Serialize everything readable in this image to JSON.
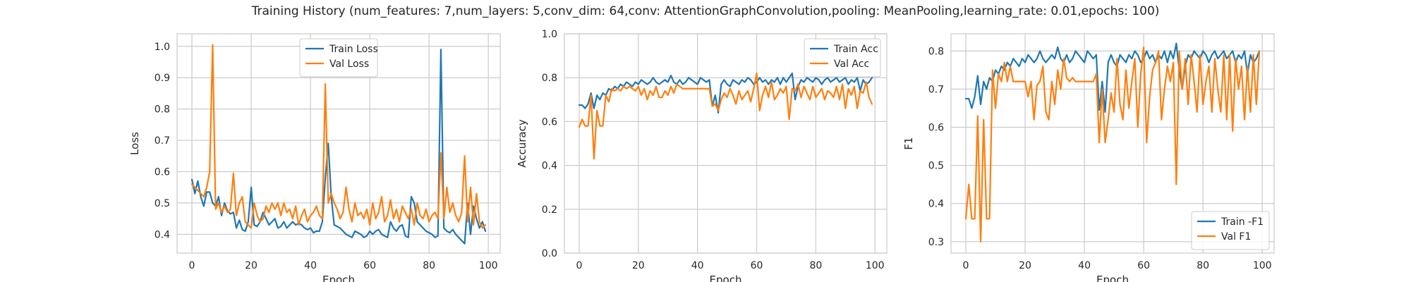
{
  "figure_title": "Training History (num_features: 7,num_layers: 5,conv_dim: 64,conv: AttentionGraphConvolution,pooling: MeanPooling,learning_rate: 0.01,epochs: 100)",
  "colors": {
    "train": "#1f77b4",
    "val": "#ff7f0e",
    "grid": "#cccccc",
    "text": "#262626"
  },
  "chart_data": [
    {
      "type": "line",
      "xlabel": "Epoch",
      "ylabel": "Loss",
      "xlim": [
        -5,
        104
      ],
      "ylim": [
        0.34,
        1.04
      ],
      "xticks": [
        0,
        20,
        40,
        60,
        80,
        100
      ],
      "yticks": [
        0.4,
        0.5,
        0.6,
        0.7,
        0.8,
        0.9,
        1.0
      ],
      "ytick_labels": [
        "0.4",
        "0.5",
        "0.6",
        "0.7",
        "0.8",
        "0.9",
        "1.0"
      ],
      "grid": true,
      "legend_position": "top-center",
      "x": [
        0,
        1,
        2,
        3,
        4,
        5,
        6,
        7,
        8,
        9,
        10,
        11,
        12,
        13,
        14,
        15,
        16,
        17,
        18,
        19,
        20,
        21,
        22,
        23,
        24,
        25,
        26,
        27,
        28,
        29,
        30,
        31,
        32,
        33,
        34,
        35,
        36,
        37,
        38,
        39,
        40,
        41,
        42,
        43,
        44,
        45,
        46,
        47,
        48,
        49,
        50,
        51,
        52,
        53,
        54,
        55,
        56,
        57,
        58,
        59,
        60,
        61,
        62,
        63,
        64,
        65,
        66,
        67,
        68,
        69,
        70,
        71,
        72,
        73,
        74,
        75,
        76,
        77,
        78,
        79,
        80,
        81,
        82,
        83,
        84,
        85,
        86,
        87,
        88,
        89,
        90,
        91,
        92,
        93,
        94,
        95,
        96,
        97,
        98,
        99
      ],
      "series": [
        {
          "name": "Train Loss",
          "color_key": "train",
          "values": [
            0.575,
            0.53,
            0.57,
            0.52,
            0.49,
            0.535,
            0.535,
            0.5,
            0.49,
            0.52,
            0.46,
            0.5,
            0.475,
            0.465,
            0.47,
            0.42,
            0.445,
            0.415,
            0.41,
            0.44,
            0.55,
            0.43,
            0.425,
            0.44,
            0.47,
            0.45,
            0.43,
            0.44,
            0.45,
            0.42,
            0.425,
            0.44,
            0.42,
            0.43,
            0.44,
            0.43,
            0.435,
            0.43,
            0.42,
            0.415,
            0.42,
            0.405,
            0.41,
            0.41,
            0.44,
            0.58,
            0.69,
            0.52,
            0.43,
            0.425,
            0.42,
            0.41,
            0.4,
            0.395,
            0.39,
            0.41,
            0.405,
            0.4,
            0.39,
            0.395,
            0.41,
            0.4,
            0.41,
            0.415,
            0.4,
            0.395,
            0.39,
            0.44,
            0.42,
            0.41,
            0.425,
            0.43,
            0.395,
            0.39,
            0.52,
            0.5,
            0.44,
            0.43,
            0.42,
            0.41,
            0.405,
            0.4,
            0.39,
            0.395,
            0.99,
            0.42,
            0.41,
            0.405,
            0.415,
            0.4,
            0.39,
            0.38,
            0.37,
            0.5,
            0.4,
            0.49,
            0.45,
            0.42,
            0.44,
            0.41
          ]
        },
        {
          "name": "Val Loss",
          "color_key": "val",
          "values": [
            0.56,
            0.55,
            0.54,
            0.53,
            0.52,
            0.55,
            0.6,
            1.005,
            0.48,
            0.5,
            0.47,
            0.49,
            0.47,
            0.48,
            0.595,
            0.46,
            0.5,
            0.52,
            0.44,
            0.43,
            0.42,
            0.5,
            0.46,
            0.44,
            0.45,
            0.49,
            0.47,
            0.5,
            0.48,
            0.5,
            0.46,
            0.5,
            0.47,
            0.48,
            0.45,
            0.49,
            0.43,
            0.46,
            0.48,
            0.44,
            0.46,
            0.47,
            0.49,
            0.46,
            0.45,
            0.88,
            0.5,
            0.53,
            0.5,
            0.48,
            0.45,
            0.47,
            0.55,
            0.48,
            0.44,
            0.5,
            0.46,
            0.47,
            0.45,
            0.48,
            0.43,
            0.5,
            0.45,
            0.47,
            0.52,
            0.44,
            0.46,
            0.51,
            0.45,
            0.48,
            0.44,
            0.49,
            0.47,
            0.45,
            0.48,
            0.43,
            0.5,
            0.46,
            0.45,
            0.48,
            0.44,
            0.46,
            0.47,
            0.45,
            0.66,
            0.45,
            0.55,
            0.47,
            0.5,
            0.46,
            0.44,
            0.47,
            0.65,
            0.44,
            0.55,
            0.43,
            0.53,
            0.44,
            0.42,
            0.43
          ]
        }
      ]
    },
    {
      "type": "line",
      "xlabel": "Epoch",
      "ylabel": "Accuracy",
      "xlim": [
        -5,
        104
      ],
      "ylim": [
        0.0,
        1.0
      ],
      "xticks": [
        0,
        20,
        40,
        60,
        80,
        100
      ],
      "yticks": [
        0.0,
        0.2,
        0.4,
        0.6,
        0.8,
        1.0
      ],
      "ytick_labels": [
        "0.0",
        "0.2",
        "0.4",
        "0.6",
        "0.8",
        "1.0"
      ],
      "grid": true,
      "legend_position": "top-right",
      "x": [
        0,
        1,
        2,
        3,
        4,
        5,
        6,
        7,
        8,
        9,
        10,
        11,
        12,
        13,
        14,
        15,
        16,
        17,
        18,
        19,
        20,
        21,
        22,
        23,
        24,
        25,
        26,
        27,
        28,
        29,
        30,
        31,
        32,
        33,
        34,
        35,
        36,
        37,
        38,
        39,
        40,
        41,
        42,
        43,
        44,
        45,
        46,
        47,
        48,
        49,
        50,
        51,
        52,
        53,
        54,
        55,
        56,
        57,
        58,
        59,
        60,
        61,
        62,
        63,
        64,
        65,
        66,
        67,
        68,
        69,
        70,
        71,
        72,
        73,
        74,
        75,
        76,
        77,
        78,
        79,
        80,
        81,
        82,
        83,
        84,
        85,
        86,
        87,
        88,
        89,
        90,
        91,
        92,
        93,
        94,
        95,
        96,
        97,
        98,
        99
      ],
      "series": [
        {
          "name": "Train Acc",
          "color_key": "train",
          "values": [
            0.675,
            0.675,
            0.66,
            0.68,
            0.73,
            0.66,
            0.72,
            0.7,
            0.73,
            0.72,
            0.75,
            0.74,
            0.76,
            0.75,
            0.77,
            0.76,
            0.78,
            0.77,
            0.76,
            0.78,
            0.77,
            0.79,
            0.78,
            0.77,
            0.78,
            0.8,
            0.78,
            0.77,
            0.78,
            0.79,
            0.78,
            0.81,
            0.78,
            0.77,
            0.79,
            0.77,
            0.78,
            0.8,
            0.79,
            0.78,
            0.77,
            0.8,
            0.79,
            0.78,
            0.79,
            0.67,
            0.72,
            0.64,
            0.77,
            0.79,
            0.77,
            0.76,
            0.79,
            0.78,
            0.77,
            0.79,
            0.78,
            0.8,
            0.79,
            0.77,
            0.78,
            0.8,
            0.78,
            0.79,
            0.77,
            0.79,
            0.78,
            0.8,
            0.77,
            0.8,
            0.78,
            0.8,
            0.82,
            0.7,
            0.76,
            0.79,
            0.78,
            0.8,
            0.79,
            0.78,
            0.8,
            0.79,
            0.77,
            0.79,
            0.8,
            0.78,
            0.79,
            0.8,
            0.78,
            0.79,
            0.8,
            0.77,
            0.79,
            0.78,
            0.8,
            0.74,
            0.79,
            0.77,
            0.78,
            0.8
          ]
        },
        {
          "name": "Val Acc",
          "color_key": "val",
          "values": [
            0.575,
            0.61,
            0.58,
            0.58,
            0.72,
            0.43,
            0.65,
            0.58,
            0.58,
            0.72,
            0.69,
            0.75,
            0.74,
            0.75,
            0.74,
            0.76,
            0.75,
            0.76,
            0.75,
            0.74,
            0.76,
            0.72,
            0.75,
            0.7,
            0.74,
            0.72,
            0.76,
            0.71,
            0.71,
            0.74,
            0.72,
            0.76,
            0.73,
            0.77,
            0.76,
            0.75,
            0.75,
            0.75,
            0.75,
            0.75,
            0.75,
            0.75,
            0.75,
            0.75,
            0.75,
            0.67,
            0.68,
            0.65,
            0.7,
            0.73,
            0.71,
            0.75,
            0.72,
            0.68,
            0.74,
            0.7,
            0.72,
            0.74,
            0.69,
            0.75,
            0.82,
            0.65,
            0.72,
            0.76,
            0.71,
            0.78,
            0.7,
            0.72,
            0.75,
            0.73,
            0.76,
            0.61,
            0.75,
            0.74,
            0.77,
            0.71,
            0.76,
            0.73,
            0.7,
            0.76,
            0.71,
            0.73,
            0.75,
            0.7,
            0.74,
            0.73,
            0.71,
            0.76,
            0.7,
            0.77,
            0.66,
            0.75,
            0.72,
            0.76,
            0.66,
            0.74,
            0.73,
            0.78,
            0.71,
            0.68
          ]
        }
      ]
    },
    {
      "type": "line",
      "xlabel": "Epoch",
      "ylabel": "F1",
      "xlim": [
        -5,
        104
      ],
      "ylim": [
        0.27,
        0.845
      ],
      "xticks": [
        0,
        20,
        40,
        60,
        80,
        100
      ],
      "yticks": [
        0.3,
        0.4,
        0.5,
        0.6,
        0.7,
        0.8
      ],
      "ytick_labels": [
        "0.3",
        "0.4",
        "0.5",
        "0.6",
        "0.7",
        "0.8"
      ],
      "grid": true,
      "legend_position": "bottom-right",
      "x": [
        0,
        1,
        2,
        3,
        4,
        5,
        6,
        7,
        8,
        9,
        10,
        11,
        12,
        13,
        14,
        15,
        16,
        17,
        18,
        19,
        20,
        21,
        22,
        23,
        24,
        25,
        26,
        27,
        28,
        29,
        30,
        31,
        32,
        33,
        34,
        35,
        36,
        37,
        38,
        39,
        40,
        41,
        42,
        43,
        44,
        45,
        46,
        47,
        48,
        49,
        50,
        51,
        52,
        53,
        54,
        55,
        56,
        57,
        58,
        59,
        60,
        61,
        62,
        63,
        64,
        65,
        66,
        67,
        68,
        69,
        70,
        71,
        72,
        73,
        74,
        75,
        76,
        77,
        78,
        79,
        80,
        81,
        82,
        83,
        84,
        85,
        86,
        87,
        88,
        89,
        90,
        91,
        92,
        93,
        94,
        95,
        96,
        97,
        98,
        99
      ],
      "series": [
        {
          "name": "Train -F1",
          "color_key": "train",
          "values": [
            0.675,
            0.675,
            0.65,
            0.68,
            0.735,
            0.66,
            0.72,
            0.7,
            0.73,
            0.72,
            0.75,
            0.74,
            0.76,
            0.75,
            0.77,
            0.76,
            0.78,
            0.77,
            0.76,
            0.78,
            0.77,
            0.79,
            0.78,
            0.77,
            0.78,
            0.8,
            0.78,
            0.77,
            0.78,
            0.79,
            0.78,
            0.81,
            0.78,
            0.77,
            0.79,
            0.77,
            0.78,
            0.8,
            0.79,
            0.78,
            0.77,
            0.8,
            0.79,
            0.78,
            0.79,
            0.645,
            0.72,
            0.64,
            0.77,
            0.79,
            0.77,
            0.76,
            0.79,
            0.78,
            0.77,
            0.79,
            0.78,
            0.8,
            0.79,
            0.77,
            0.78,
            0.8,
            0.78,
            0.79,
            0.77,
            0.79,
            0.78,
            0.8,
            0.77,
            0.8,
            0.78,
            0.82,
            0.75,
            0.7,
            0.76,
            0.79,
            0.78,
            0.8,
            0.79,
            0.78,
            0.8,
            0.79,
            0.77,
            0.79,
            0.8,
            0.78,
            0.79,
            0.8,
            0.78,
            0.79,
            0.8,
            0.77,
            0.79,
            0.78,
            0.8,
            0.74,
            0.79,
            0.77,
            0.78,
            0.8
          ]
        },
        {
          "name": "Val F1",
          "color_key": "val",
          "values": [
            0.36,
            0.45,
            0.36,
            0.36,
            0.63,
            0.3,
            0.62,
            0.36,
            0.36,
            0.75,
            0.65,
            0.74,
            0.72,
            0.77,
            0.72,
            0.76,
            0.72,
            0.72,
            0.72,
            0.72,
            0.72,
            0.68,
            0.72,
            0.62,
            0.71,
            0.72,
            0.76,
            0.64,
            0.62,
            0.72,
            0.66,
            0.75,
            0.7,
            0.78,
            0.73,
            0.72,
            0.73,
            0.72,
            0.72,
            0.72,
            0.72,
            0.72,
            0.72,
            0.72,
            0.74,
            0.56,
            0.7,
            0.56,
            0.62,
            0.69,
            0.64,
            0.78,
            0.66,
            0.62,
            0.75,
            0.65,
            0.72,
            0.78,
            0.6,
            0.74,
            0.81,
            0.56,
            0.68,
            0.75,
            0.77,
            0.8,
            0.62,
            0.7,
            0.76,
            0.72,
            0.77,
            0.45,
            0.8,
            0.7,
            0.78,
            0.66,
            0.79,
            0.72,
            0.64,
            0.79,
            0.66,
            0.72,
            0.76,
            0.64,
            0.78,
            0.7,
            0.64,
            0.79,
            0.62,
            0.79,
            0.59,
            0.78,
            0.7,
            0.76,
            0.62,
            0.76,
            0.64,
            0.79,
            0.66,
            0.8
          ]
        }
      ]
    }
  ]
}
